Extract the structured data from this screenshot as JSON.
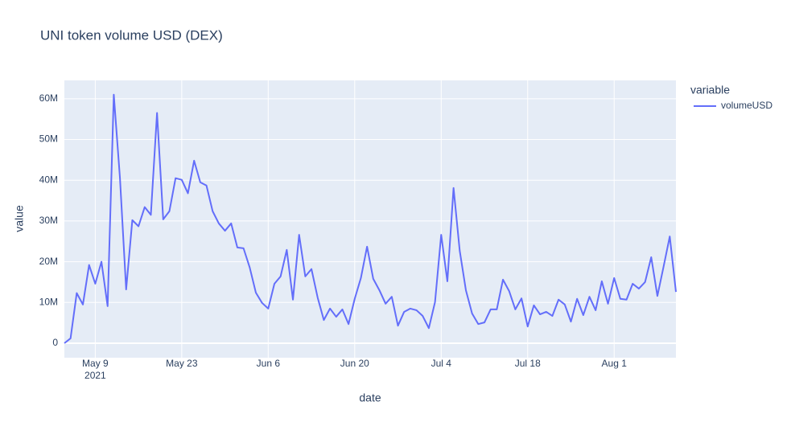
{
  "chart_data": {
    "type": "line",
    "title": "UNI token volume USD (DEX)",
    "x_label": "date",
    "y_label": "value",
    "legend_title": "variable",
    "x": [
      "2021-05-04",
      "2021-05-05",
      "2021-05-06",
      "2021-05-07",
      "2021-05-08",
      "2021-05-09",
      "2021-05-10",
      "2021-05-11",
      "2021-05-12",
      "2021-05-13",
      "2021-05-14",
      "2021-05-15",
      "2021-05-16",
      "2021-05-17",
      "2021-05-18",
      "2021-05-19",
      "2021-05-20",
      "2021-05-21",
      "2021-05-22",
      "2021-05-23",
      "2021-05-24",
      "2021-05-25",
      "2021-05-26",
      "2021-05-27",
      "2021-05-28",
      "2021-05-29",
      "2021-05-30",
      "2021-05-31",
      "2021-06-01",
      "2021-06-02",
      "2021-06-03",
      "2021-06-04",
      "2021-06-05",
      "2021-06-06",
      "2021-06-07",
      "2021-06-08",
      "2021-06-09",
      "2021-06-10",
      "2021-06-11",
      "2021-06-12",
      "2021-06-13",
      "2021-06-14",
      "2021-06-15",
      "2021-06-16",
      "2021-06-17",
      "2021-06-18",
      "2021-06-19",
      "2021-06-20",
      "2021-06-21",
      "2021-06-22",
      "2021-06-23",
      "2021-06-24",
      "2021-06-25",
      "2021-06-26",
      "2021-06-27",
      "2021-06-28",
      "2021-06-29",
      "2021-06-30",
      "2021-07-01",
      "2021-07-02",
      "2021-07-03",
      "2021-07-04",
      "2021-07-05",
      "2021-07-06",
      "2021-07-07",
      "2021-07-08",
      "2021-07-09",
      "2021-07-10",
      "2021-07-11",
      "2021-07-12",
      "2021-07-13",
      "2021-07-14",
      "2021-07-15",
      "2021-07-16",
      "2021-07-17",
      "2021-07-18",
      "2021-07-19",
      "2021-07-20",
      "2021-07-21",
      "2021-07-22",
      "2021-07-23",
      "2021-07-24",
      "2021-07-25",
      "2021-07-26",
      "2021-07-27",
      "2021-07-28",
      "2021-07-29",
      "2021-07-30",
      "2021-07-31",
      "2021-08-01",
      "2021-08-02",
      "2021-08-03",
      "2021-08-04",
      "2021-08-05",
      "2021-08-06",
      "2021-08-07",
      "2021-08-08",
      "2021-08-09",
      "2021-08-10",
      "2021-08-11"
    ],
    "series": [
      {
        "name": "volumeUSD",
        "color": "#636efa",
        "values": [
          0,
          1200000,
          12300000,
          9500000,
          19200000,
          14600000,
          20000000,
          9100000,
          61000000,
          40500000,
          13200000,
          30200000,
          28700000,
          33400000,
          31500000,
          56500000,
          30400000,
          32400000,
          40500000,
          40100000,
          36800000,
          44800000,
          39500000,
          38700000,
          32400000,
          29400000,
          27600000,
          29400000,
          23500000,
          23300000,
          18600000,
          12400000,
          9900000,
          8500000,
          14600000,
          16400000,
          22900000,
          10700000,
          26600000,
          16400000,
          18200000,
          11200000,
          5700000,
          8500000,
          6500000,
          8300000,
          4700000,
          10900000,
          16000000,
          23700000,
          15800000,
          13000000,
          9700000,
          11400000,
          4300000,
          7700000,
          8500000,
          8100000,
          6700000,
          3700000,
          10100000,
          26600000,
          15200000,
          38100000,
          22700000,
          13000000,
          7300000,
          4700000,
          5100000,
          8300000,
          8300000,
          15600000,
          12800000,
          8300000,
          11000000,
          4100000,
          9300000,
          7100000,
          7700000,
          6700000,
          10700000,
          9500000,
          5300000,
          10900000,
          6900000,
          11400000,
          8100000,
          15200000,
          9700000,
          16000000,
          10900000,
          10700000,
          14600000,
          13400000,
          15000000,
          21100000,
          11600000,
          18800000,
          26200000,
          12600000
        ]
      }
    ],
    "xlim": [
      "2021-05-04",
      "2021-08-11"
    ],
    "xticks": [
      {
        "value": "2021-05-09",
        "label": "May 9\n2021"
      },
      {
        "value": "2021-05-23",
        "label": "May 23"
      },
      {
        "value": "2021-06-06",
        "label": "Jun 6"
      },
      {
        "value": "2021-06-20",
        "label": "Jun 20"
      },
      {
        "value": "2021-07-04",
        "label": "Jul 4"
      },
      {
        "value": "2021-07-18",
        "label": "Jul 18"
      },
      {
        "value": "2021-08-01",
        "label": "Aug 1"
      }
    ],
    "ylim": [
      -3550000,
      64500000
    ],
    "yticks": [
      0,
      {
        "value": 10000000,
        "label": "10M"
      },
      {
        "value": 20000000,
        "label": "20M"
      },
      {
        "value": 30000000,
        "label": "30M"
      },
      {
        "value": 40000000,
        "label": "40M"
      },
      {
        "value": 50000000,
        "label": "50M"
      },
      {
        "value": 60000000,
        "label": "60M"
      }
    ],
    "grid": true,
    "legend_position": "right"
  }
}
